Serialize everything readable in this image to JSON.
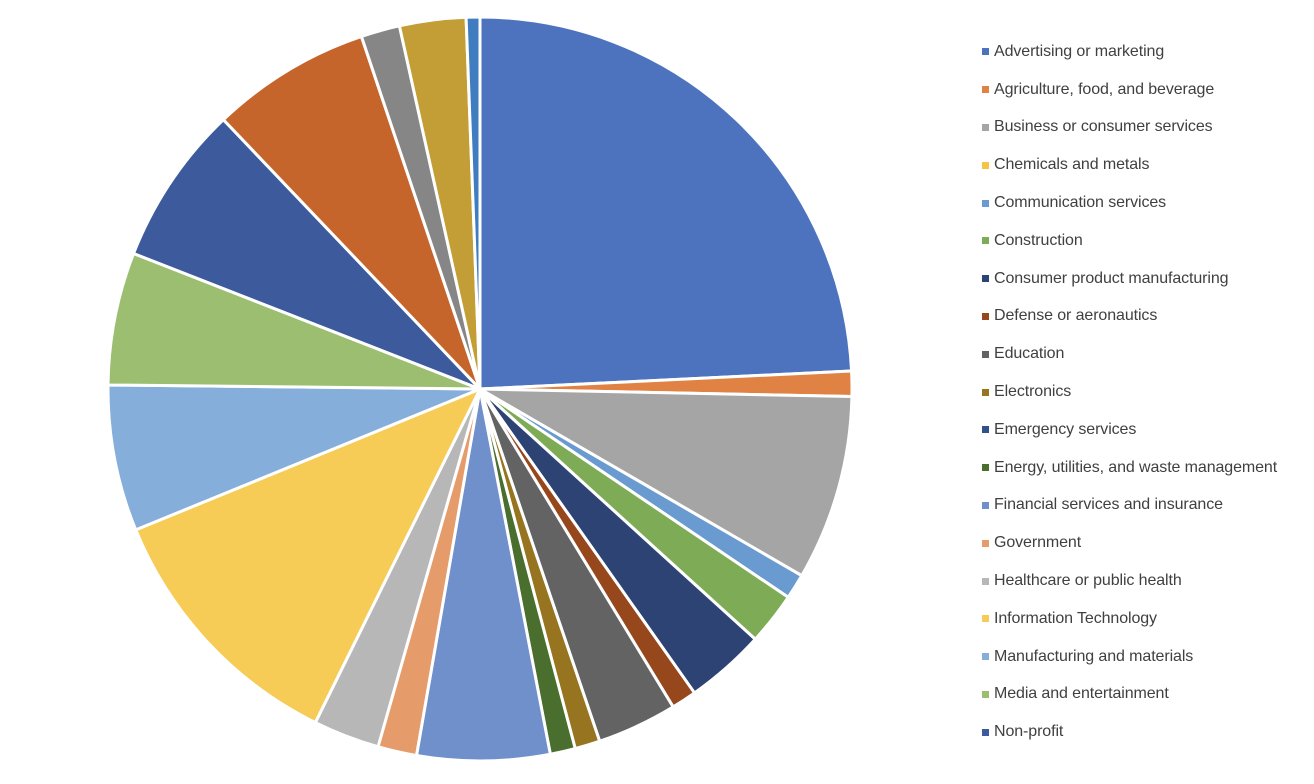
{
  "chart_data": {
    "type": "pie",
    "title": "",
    "legend_position": "right",
    "start_angle_deg": 0,
    "direction": "clockwise",
    "slices": [
      {
        "label": "Advertising or marketing",
        "value": 24.4,
        "color": "#4E73BE"
      },
      {
        "label": "Agriculture, food, and beverage",
        "value": 1.1,
        "color": "#DF8244"
      },
      {
        "label": "Business or consumer services",
        "value": 8.1,
        "color": "#A5A5A5"
      },
      {
        "label": "Chemicals and metals",
        "value": 0.0,
        "color": "#F6C344"
      },
      {
        "label": "Communication services",
        "value": 1.1,
        "color": "#699AD0"
      },
      {
        "label": "Construction",
        "value": 2.3,
        "color": "#7EAB55"
      },
      {
        "label": "Consumer product manufacturing",
        "value": 3.5,
        "color": "#2D4374"
      },
      {
        "label": "Defense or aeronautics",
        "value": 1.1,
        "color": "#96471C"
      },
      {
        "label": "Education",
        "value": 3.5,
        "color": "#636363"
      },
      {
        "label": "Electronics",
        "value": 1.1,
        "color": "#967420"
      },
      {
        "label": "Emergency services",
        "value": 0.0,
        "color": "#2F518C"
      },
      {
        "label": "Energy, utilities, and waste management",
        "value": 1.1,
        "color": "#4A6E2D"
      },
      {
        "label": "Financial services and insurance",
        "value": 5.8,
        "color": "#7090CC"
      },
      {
        "label": "Government",
        "value": 1.7,
        "color": "#E59B6A"
      },
      {
        "label": "Healthcare or public health",
        "value": 2.9,
        "color": "#B7B7B7"
      },
      {
        "label": "Information Technology",
        "value": 11.6,
        "color": "#F6CB56"
      },
      {
        "label": "Manufacturing and materials",
        "value": 6.4,
        "color": "#86AEDB"
      },
      {
        "label": "Media and entertainment",
        "value": 5.8,
        "color": "#9BBE71"
      },
      {
        "label": "Non-profit",
        "value": 7.0,
        "color": "#3C5A9C"
      },
      {
        "label": "",
        "value": 7.0,
        "color": "#C5642B"
      },
      {
        "label": "",
        "value": 1.7,
        "color": "#868686"
      },
      {
        "label": "",
        "value": 2.9,
        "color": "#C39D35"
      },
      {
        "label": "",
        "value": 0.6,
        "color": "#3F7CC0"
      }
    ]
  }
}
